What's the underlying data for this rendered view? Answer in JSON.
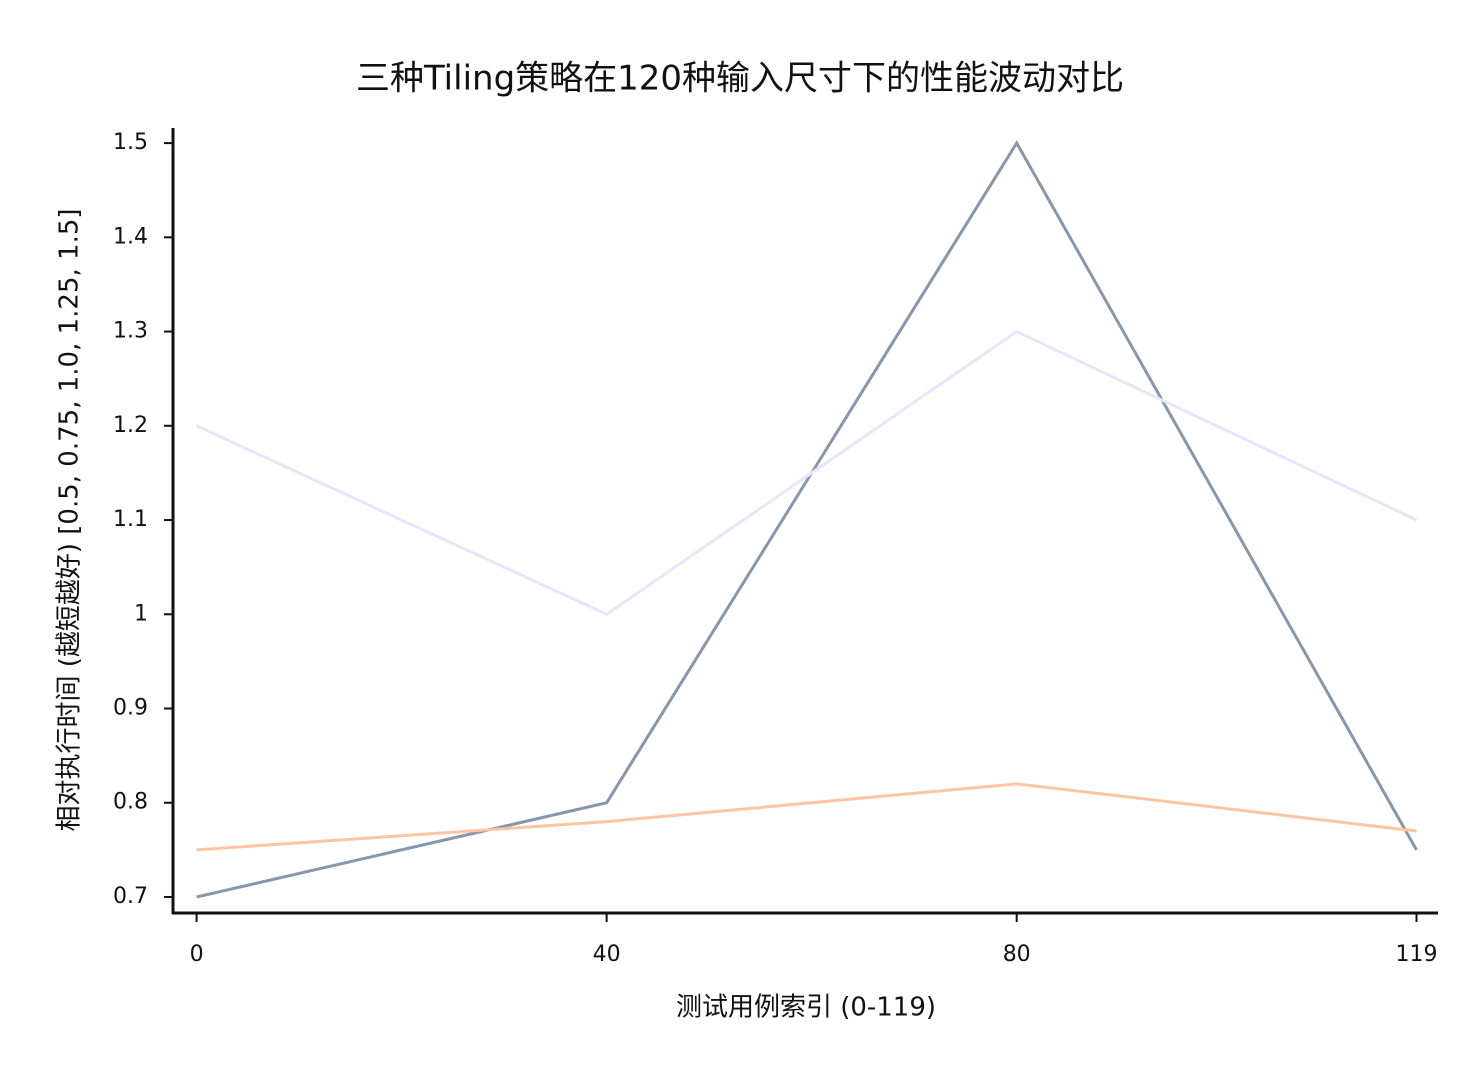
{
  "chart_data": {
    "type": "line",
    "title": "三种Tiling策略在120种输入尺寸下的性能波动对比",
    "x_label": "测试用例索引 (0-119)",
    "y_label": "相对执行时间 (越短越好) [0.5, 0.75, 1.0, 1.25, 1.5]",
    "x": [
      0,
      40,
      80,
      119
    ],
    "series": [
      {
        "color": "#8796ab",
        "values": [
          0.7,
          0.8,
          1.5,
          0.75
        ]
      },
      {
        "color": "#e6e6fa",
        "values": [
          1.2,
          1.0,
          1.3,
          1.1
        ]
      },
      {
        "color": "#ffc4a0",
        "values": [
          0.75,
          0.78,
          0.82,
          0.77
        ]
      }
    ],
    "xlim": [
      -2.3,
      121
    ],
    "xticks": [
      0,
      40,
      80,
      119
    ],
    "ylim": [
      0.683,
      1.516
    ],
    "yticks": [
      0.7,
      0.8,
      0.9,
      1,
      1.1,
      1.2,
      1.3,
      1.4,
      1.5
    ],
    "grid": false
  }
}
